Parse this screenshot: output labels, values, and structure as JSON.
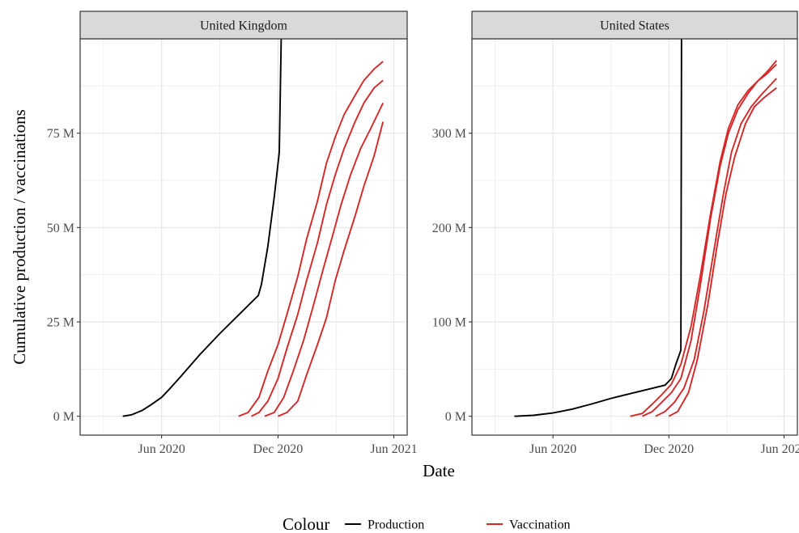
{
  "chart_data": {
    "type": "line",
    "xlabel": "Date",
    "ylabel": "Cumulative production / vaccinations",
    "x_ticks": [
      {
        "date": "2020-06-01",
        "label": "Jun 2020"
      },
      {
        "date": "2020-12-01",
        "label": "Dec 2020"
      },
      {
        "date": "2021-06-01",
        "label": "Jun 2021"
      }
    ],
    "legend": {
      "title": "Colour",
      "position": "bottom",
      "entries": [
        {
          "name": "Production",
          "color": "#000000"
        },
        {
          "name": "Vaccination",
          "color": "#d62728"
        }
      ]
    },
    "grid": true,
    "facets": [
      {
        "title": "United Kingdom",
        "xlim": [
          "2020-01-25",
          "2021-06-22"
        ],
        "ylim": [
          -5,
          100
        ],
        "y_ticks": [
          {
            "value": 0,
            "label": "0 M"
          },
          {
            "value": 25,
            "label": "25 M"
          },
          {
            "value": 50,
            "label": "50 M"
          },
          {
            "value": 75,
            "label": "75 M"
          }
        ],
        "series": [
          {
            "color_key": "Production",
            "points": [
              [
                "2020-04-01",
                0
              ],
              [
                "2020-04-15",
                0.4
              ],
              [
                "2020-05-01",
                1.5
              ],
              [
                "2020-05-15",
                3.0
              ],
              [
                "2020-06-01",
                5.0
              ],
              [
                "2020-06-15",
                7.5
              ],
              [
                "2020-07-01",
                10.5
              ],
              [
                "2020-08-01",
                16.5
              ],
              [
                "2020-09-01",
                22.0
              ],
              [
                "2020-10-01",
                27.0
              ],
              [
                "2020-10-31",
                32.0
              ],
              [
                "2020-11-05",
                35.0
              ],
              [
                "2020-11-15",
                45.0
              ],
              [
                "2020-11-25",
                58.0
              ],
              [
                "2020-12-03",
                70.0
              ],
              [
                "2020-12-05",
                90.0
              ],
              [
                "2020-12-06",
                100.0
              ]
            ]
          },
          {
            "color_key": "Vaccination",
            "points": [
              [
                "2020-09-30",
                0
              ],
              [
                "2020-10-15",
                1
              ],
              [
                "2020-11-01",
                5
              ],
              [
                "2020-11-15",
                12
              ],
              [
                "2020-12-01",
                19
              ],
              [
                "2020-12-15",
                27
              ],
              [
                "2021-01-01",
                37
              ],
              [
                "2021-01-15",
                47
              ],
              [
                "2021-02-01",
                57
              ],
              [
                "2021-02-15",
                67
              ],
              [
                "2021-03-01",
                74
              ],
              [
                "2021-03-15",
                80
              ],
              [
                "2021-04-01",
                85
              ],
              [
                "2021-04-15",
                89
              ],
              [
                "2021-05-01",
                92
              ],
              [
                "2021-05-15",
                94
              ]
            ]
          },
          {
            "color_key": "Vaccination",
            "points": [
              [
                "2020-10-20",
                0
              ],
              [
                "2020-11-01",
                1
              ],
              [
                "2020-11-15",
                4
              ],
              [
                "2020-12-01",
                10
              ],
              [
                "2020-12-15",
                18
              ],
              [
                "2021-01-01",
                27
              ],
              [
                "2021-01-15",
                36
              ],
              [
                "2021-02-01",
                46
              ],
              [
                "2021-02-15",
                56
              ],
              [
                "2021-03-01",
                64
              ],
              [
                "2021-03-15",
                71
              ],
              [
                "2021-04-01",
                78
              ],
              [
                "2021-04-15",
                83
              ],
              [
                "2021-05-01",
                87
              ],
              [
                "2021-05-15",
                89
              ]
            ]
          },
          {
            "color_key": "Vaccination",
            "points": [
              [
                "2020-11-10",
                0
              ],
              [
                "2020-11-25",
                1
              ],
              [
                "2020-12-10",
                5
              ],
              [
                "2020-12-25",
                12
              ],
              [
                "2021-01-10",
                20
              ],
              [
                "2021-01-25",
                29
              ],
              [
                "2021-02-10",
                39
              ],
              [
                "2021-02-25",
                48
              ],
              [
                "2021-03-10",
                56
              ],
              [
                "2021-03-25",
                64
              ],
              [
                "2021-04-10",
                71
              ],
              [
                "2021-04-25",
                76
              ],
              [
                "2021-05-15",
                83
              ]
            ]
          },
          {
            "color_key": "Vaccination",
            "points": [
              [
                "2020-12-01",
                0
              ],
              [
                "2020-12-15",
                1
              ],
              [
                "2021-01-01",
                4
              ],
              [
                "2021-01-15",
                11
              ],
              [
                "2021-02-01",
                19
              ],
              [
                "2021-02-15",
                26
              ],
              [
                "2021-03-01",
                36
              ],
              [
                "2021-03-15",
                44
              ],
              [
                "2021-04-01",
                53
              ],
              [
                "2021-04-15",
                61
              ],
              [
                "2021-05-01",
                69
              ],
              [
                "2021-05-15",
                78
              ]
            ]
          }
        ]
      },
      {
        "title": "United States",
        "xlim": [
          "2020-01-25",
          "2021-06-22"
        ],
        "ylim": [
          -20,
          400
        ],
        "y_ticks": [
          {
            "value": 0,
            "label": "0 M"
          },
          {
            "value": 100,
            "label": "100 M"
          },
          {
            "value": 200,
            "label": "200 M"
          },
          {
            "value": 300,
            "label": "300 M"
          }
        ],
        "series": [
          {
            "color_key": "Production",
            "points": [
              [
                "2020-04-01",
                0
              ],
              [
                "2020-05-01",
                1
              ],
              [
                "2020-06-01",
                3.5
              ],
              [
                "2020-07-01",
                7.5
              ],
              [
                "2020-08-01",
                13
              ],
              [
                "2020-09-01",
                19
              ],
              [
                "2020-10-01",
                24
              ],
              [
                "2020-11-01",
                29
              ],
              [
                "2020-11-25",
                33
              ],
              [
                "2020-12-05",
                40
              ],
              [
                "2020-12-12",
                55
              ],
              [
                "2020-12-20",
                70
              ],
              [
                "2020-12-21",
                400
              ]
            ]
          },
          {
            "color_key": "Vaccination",
            "points": [
              [
                "2020-10-01",
                0
              ],
              [
                "2020-10-20",
                3
              ],
              [
                "2020-11-05",
                13
              ],
              [
                "2020-11-20",
                23
              ],
              [
                "2020-12-05",
                34
              ],
              [
                "2020-12-20",
                55
              ],
              [
                "2021-01-05",
                95
              ],
              [
                "2021-01-20",
                150
              ],
              [
                "2021-02-05",
                215
              ],
              [
                "2021-02-20",
                270
              ],
              [
                "2021-03-05",
                305
              ],
              [
                "2021-03-20",
                330
              ],
              [
                "2021-04-05",
                345
              ],
              [
                "2021-04-20",
                355
              ],
              [
                "2021-05-05",
                365
              ],
              [
                "2021-05-20",
                377
              ]
            ]
          },
          {
            "color_key": "Vaccination",
            "points": [
              [
                "2020-10-20",
                0
              ],
              [
                "2020-11-05",
                5
              ],
              [
                "2020-11-20",
                15
              ],
              [
                "2020-12-05",
                25
              ],
              [
                "2020-12-20",
                40
              ],
              [
                "2021-01-05",
                80
              ],
              [
                "2021-01-20",
                140
              ],
              [
                "2021-02-05",
                210
              ],
              [
                "2021-02-20",
                265
              ],
              [
                "2021-03-05",
                300
              ],
              [
                "2021-03-20",
                325
              ],
              [
                "2021-04-05",
                342
              ],
              [
                "2021-04-20",
                355
              ],
              [
                "2021-05-05",
                363
              ],
              [
                "2021-05-20",
                373
              ]
            ]
          },
          {
            "color_key": "Vaccination",
            "points": [
              [
                "2020-11-10",
                0
              ],
              [
                "2020-11-25",
                5
              ],
              [
                "2020-12-10",
                15
              ],
              [
                "2020-12-25",
                30
              ],
              [
                "2021-01-10",
                60
              ],
              [
                "2021-01-25",
                110
              ],
              [
                "2021-02-10",
                175
              ],
              [
                "2021-02-25",
                235
              ],
              [
                "2021-03-10",
                280
              ],
              [
                "2021-03-25",
                310
              ],
              [
                "2021-04-10",
                328
              ],
              [
                "2021-04-25",
                340
              ],
              [
                "2021-05-20",
                358
              ]
            ]
          },
          {
            "color_key": "Vaccination",
            "points": [
              [
                "2020-12-01",
                0
              ],
              [
                "2020-12-15",
                5
              ],
              [
                "2021-01-01",
                25
              ],
              [
                "2021-01-15",
                60
              ],
              [
                "2021-02-01",
                120
              ],
              [
                "2021-02-15",
                180
              ],
              [
                "2021-03-01",
                235
              ],
              [
                "2021-03-15",
                275
              ],
              [
                "2021-04-01",
                310
              ],
              [
                "2021-04-15",
                328
              ],
              [
                "2021-05-01",
                338
              ],
              [
                "2021-05-20",
                348
              ]
            ]
          }
        ]
      }
    ]
  }
}
